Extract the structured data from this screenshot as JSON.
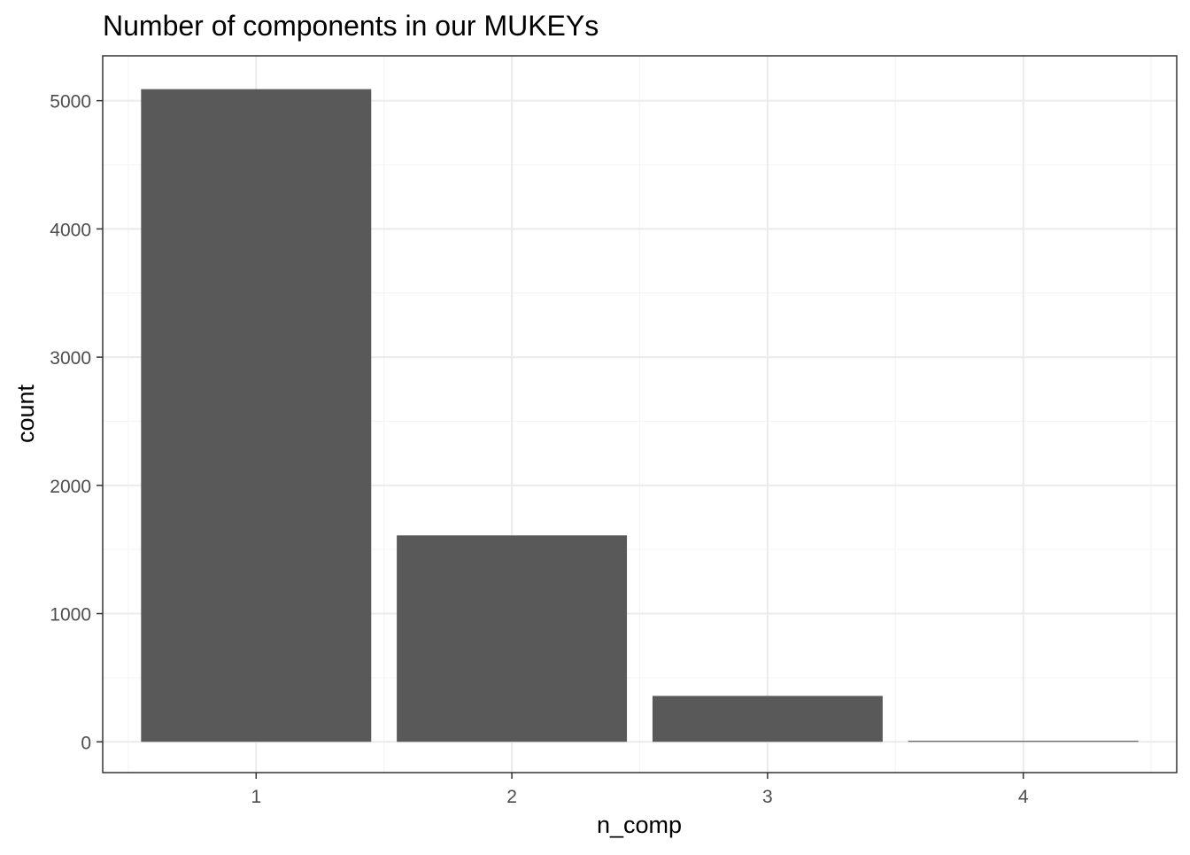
{
  "chart_data": {
    "type": "bar",
    "title": "Number of components in our MUKEYs",
    "xlabel": "n_comp",
    "ylabel": "count",
    "categories": [
      "1",
      "2",
      "3",
      "4"
    ],
    "values": [
      5090,
      1610,
      358,
      8
    ],
    "ylim": [
      -240,
      5350
    ],
    "yticks": [
      0,
      1000,
      2000,
      3000,
      4000,
      5000
    ],
    "ytick_labels": [
      "0",
      "1000",
      "2000",
      "3000",
      "4000",
      "5000"
    ],
    "grid": true,
    "legend": "none",
    "colors": {
      "bar": "#595959",
      "grid_major": "#ebebeb",
      "grid_minor": "#f5f5f5",
      "panel_border": "#333333",
      "axis_text": "#4d4d4d",
      "title": "#000000"
    }
  }
}
